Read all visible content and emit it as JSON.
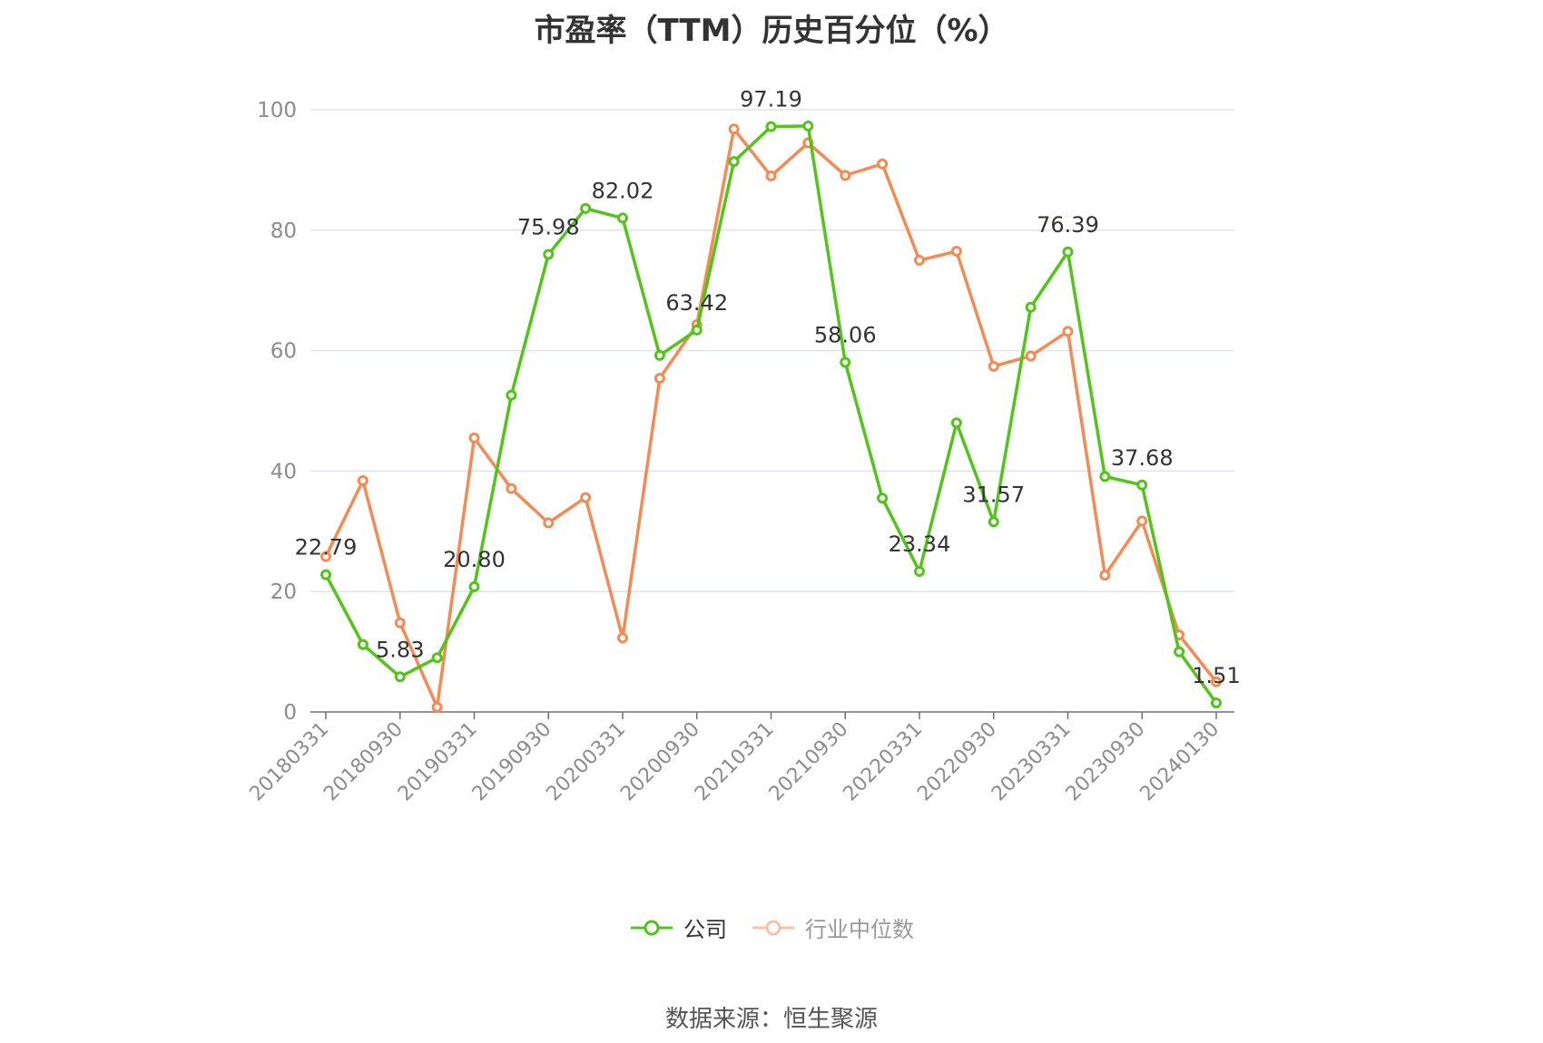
{
  "title": "市盈率（TTM）历史百分位（%）",
  "source": "数据来源：恒生聚源",
  "colors": {
    "company": "#52c41a",
    "industry": "#f28b54",
    "grid": "#dfe3f0",
    "axis": "#6e7079",
    "text": "#8c8c8c"
  },
  "chart_data": {
    "type": "line",
    "ylim": [
      0,
      100
    ],
    "yticks": [
      0,
      20,
      40,
      60,
      80,
      100
    ],
    "x": [
      "20180331",
      "20180630",
      "20180930",
      "20181231",
      "20190331",
      "20190630",
      "20190930",
      "20191231",
      "20200331",
      "20200630",
      "20200930",
      "20201231",
      "20210331",
      "20210630",
      "20210930",
      "20211231",
      "20220331",
      "20220630",
      "20220930",
      "20221231",
      "20230331",
      "20230630",
      "20230930",
      "20231231",
      "20240130"
    ],
    "xtick_labels": [
      "20180331",
      "20180930",
      "20190331",
      "20190930",
      "20200331",
      "20200930",
      "20210331",
      "20210930",
      "20220331",
      "20220930",
      "20230331",
      "20230930",
      "20240130"
    ],
    "series": [
      {
        "name": "公司",
        "color": "#52c41a",
        "values": [
          22.79,
          11.2,
          5.83,
          9.0,
          20.8,
          52.6,
          75.98,
          83.6,
          82.02,
          59.2,
          63.42,
          91.4,
          97.19,
          97.3,
          58.06,
          35.5,
          23.34,
          48.0,
          31.57,
          67.2,
          76.39,
          39.1,
          37.68,
          10.0,
          1.51
        ],
        "labels": {
          "0": "22.79",
          "2": "5.83",
          "4": "20.80",
          "6": "75.98",
          "8": "82.02",
          "10": "63.42",
          "12": "97.19",
          "14": "58.06",
          "16": "23.34",
          "18": "31.57",
          "20": "76.39",
          "22": "37.68",
          "24": "1.51"
        }
      },
      {
        "name": "行业中位数",
        "color": "#f28b54",
        "values": [
          25.8,
          38.4,
          14.8,
          0.8,
          45.5,
          37.1,
          31.4,
          35.6,
          12.3,
          55.4,
          64.3,
          96.8,
          89.0,
          94.5,
          89.1,
          91.0,
          75.0,
          76.5,
          57.4,
          59.1,
          63.2,
          22.7,
          31.7,
          12.8,
          5.0
        ]
      }
    ],
    "legend_position": "bottom-center",
    "grid": true
  }
}
